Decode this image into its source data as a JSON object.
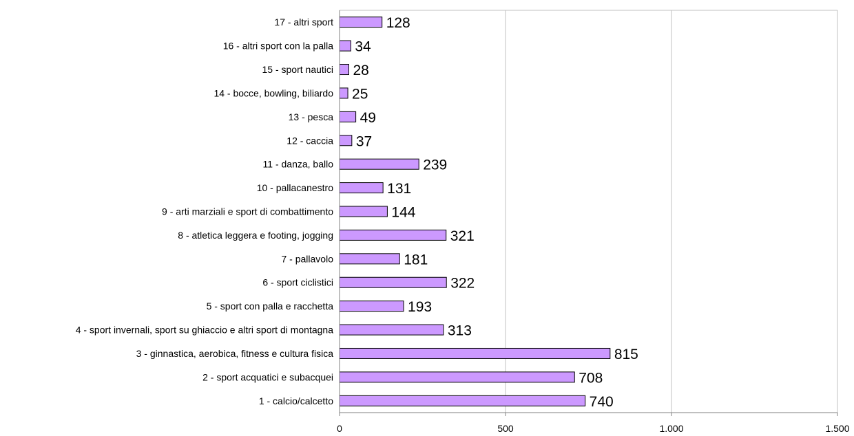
{
  "chart_data": {
    "type": "bar",
    "orientation": "horizontal",
    "title": "",
    "xlabel": "",
    "ylabel": "",
    "categories": [
      "1 - calcio/calcetto",
      "2 - sport acquatici e subacquei",
      "3 - ginnastica, aerobica, fitness e cultura fisica",
      "4 - sport invernali, sport su ghiaccio e altri sport di montagna",
      "5 - sport con palla e racchetta",
      "6 - sport ciclistici",
      "7 - pallavolo",
      "8 - atletica leggera e footing, jogging",
      "9 - arti marziali e sport di combattimento",
      "10 - pallacanestro",
      "11 - danza, ballo",
      "12 - caccia",
      "13 - pesca",
      "14 - bocce, bowling, biliardo",
      "15 - sport nautici",
      "16 - altri sport con la palla",
      "17 - altri sport"
    ],
    "values": [
      740,
      708,
      815,
      313,
      193,
      322,
      181,
      321,
      144,
      131,
      239,
      37,
      49,
      25,
      28,
      34,
      128
    ],
    "xlim": [
      0,
      1500
    ],
    "xticks": [
      0,
      500,
      1000,
      1500
    ],
    "xtick_labels": [
      "0",
      "500",
      "1.000",
      "1.500"
    ],
    "grid": "vertical",
    "legend": "none",
    "colors": {
      "bar_fill": "#cc99ff",
      "bar_stroke": "#000000",
      "grid": "#c0c0c0",
      "axis": "#808080"
    }
  }
}
